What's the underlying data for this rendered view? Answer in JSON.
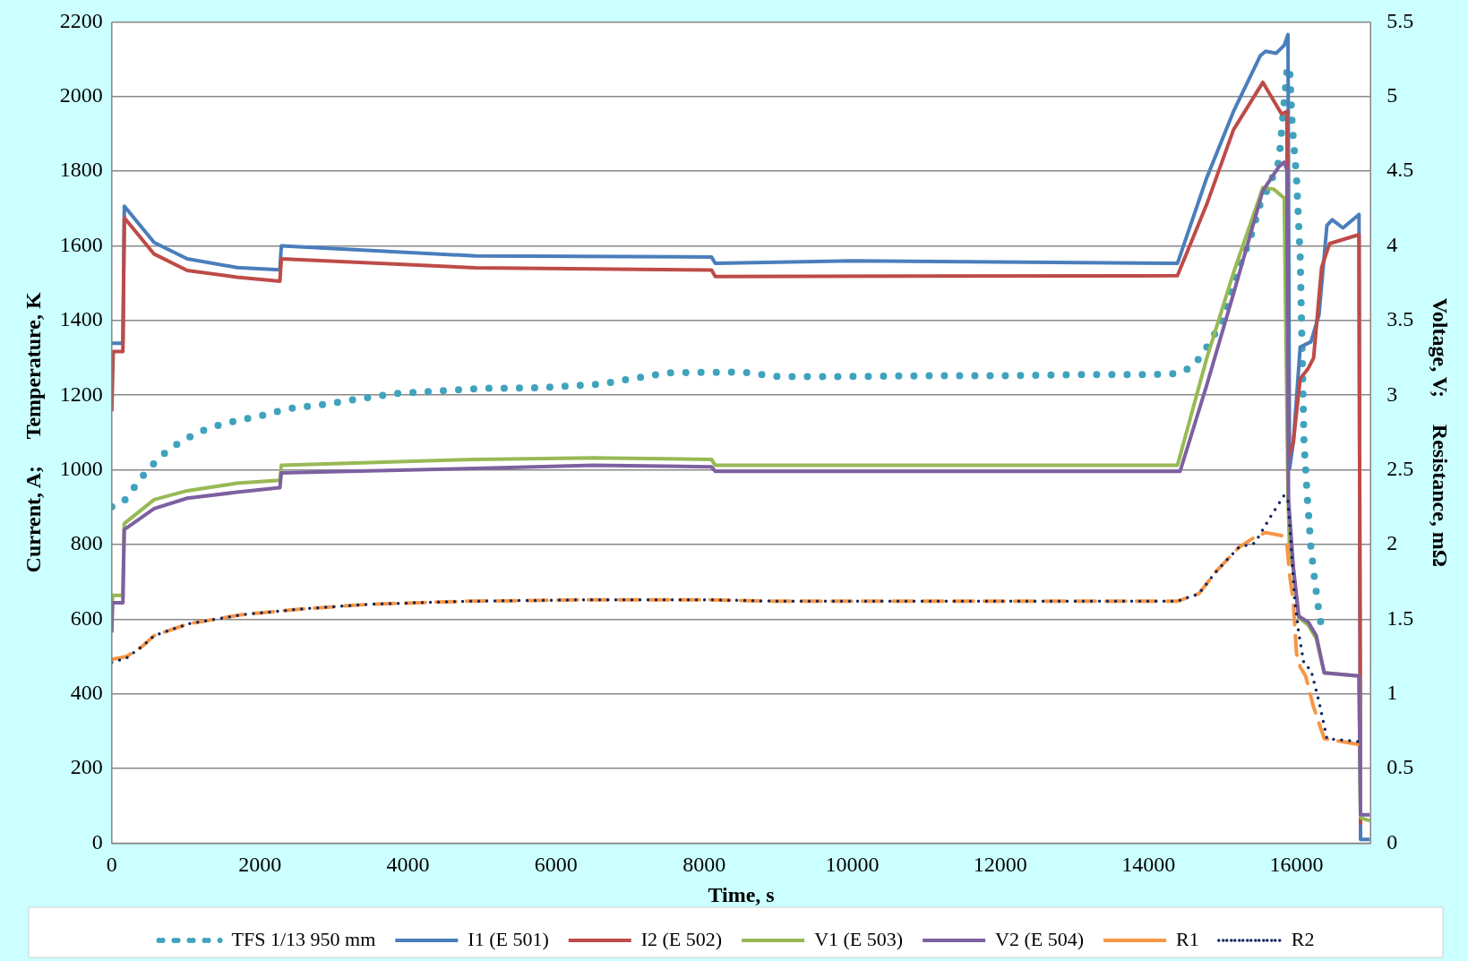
{
  "chart_data": {
    "type": "line",
    "xlabel": "Time, s",
    "ylabel": "Current, A;     Temperature, K",
    "y2label": "Voltage, V;     Resistance, mΩ",
    "xlim": [
      0,
      17000
    ],
    "xticks": [
      0,
      2000,
      4000,
      6000,
      8000,
      10000,
      12000,
      14000,
      16000
    ],
    "ylim": [
      0,
      2200
    ],
    "yticks": [
      0,
      200,
      400,
      600,
      800,
      1000,
      1200,
      1400,
      1600,
      1800,
      2000,
      2200
    ],
    "y2lim": [
      0,
      5.5
    ],
    "y2ticks": [
      0,
      0.5,
      1,
      1.5,
      2,
      2.5,
      3,
      3.5,
      4,
      4.5,
      5,
      5.5
    ],
    "grid": "y",
    "legend": "bottom",
    "marker": "none",
    "series": [
      {
        "name": "TFS 1/13 950 mm",
        "color": "#3fa3bd",
        "line_style": "dotted",
        "x": [
          0,
          168,
          293,
          418,
          555,
          699,
          868,
          1043,
          1262,
          1481,
          1763,
          2025,
          2394,
          2869,
          3339,
          3826,
          4376,
          4983,
          5808,
          6577,
          7500,
          8500,
          9000,
          10000,
          11000,
          12000,
          13000,
          14000,
          14392,
          14608,
          14789,
          15005,
          15221,
          15366,
          15510,
          15618,
          15762,
          15870,
          15906,
          15942,
          16000,
          16050,
          16072,
          16101,
          16144,
          16195,
          16245,
          16303,
          16346
        ],
        "values": [
          901,
          917,
          950,
          983,
          1014,
          1042,
          1067,
          1087,
          1108,
          1122,
          1135,
          1145,
          1164,
          1175,
          1190,
          1204,
          1211,
          1218,
          1220,
          1229,
          1260,
          1262,
          1250,
          1250,
          1252,
          1252,
          1255,
          1255,
          1258,
          1277,
          1329,
          1400,
          1542,
          1613,
          1712,
          1755,
          1826,
          2067,
          2081,
          1925,
          1783,
          1570,
          1357,
          1074,
          932,
          790,
          705,
          620,
          570
        ]
      },
      {
        "name": "I1 (E 501)",
        "color": "#4a7ebb",
        "line_style": "solid",
        "x": [
          0,
          150,
          170,
          572,
          1019,
          1691,
          2270,
          2290,
          4915,
          8100,
          8150,
          10000,
          14392,
          14789,
          15149,
          15510,
          15582,
          15726,
          15834,
          15885,
          15906,
          15957,
          16050,
          16195,
          16303,
          16411,
          16483,
          16627,
          16844,
          16865,
          16990
        ],
        "values": [
          1339,
          1339,
          1706,
          1609,
          1565,
          1542,
          1536,
          1600,
          1573,
          1570,
          1553,
          1560,
          1553,
          1783,
          1960,
          2109,
          2121,
          2116,
          2137,
          2166,
          1003,
          1074,
          1329,
          1343,
          1414,
          1655,
          1670,
          1648,
          1684,
          10,
          10
        ]
      },
      {
        "name": "I2 (E 502)",
        "color": "#be4b48",
        "line_style": "solid",
        "x": [
          0,
          20,
          150,
          170,
          572,
          1019,
          1691,
          2270,
          2290,
          4915,
          8100,
          8150,
          14392,
          14789,
          15149,
          15546,
          15798,
          15870,
          15892,
          15957,
          16050,
          16159,
          16231,
          16339,
          16447,
          16844,
          16865
        ],
        "values": [
          1157,
          1317,
          1317,
          1675,
          1578,
          1534,
          1516,
          1505,
          1565,
          1541,
          1535,
          1518,
          1520,
          1712,
          1911,
          2038,
          1953,
          1960,
          1031,
          1074,
          1244,
          1272,
          1300,
          1542,
          1606,
          1630,
          50
        ]
      },
      {
        "name": "V1 (E 503)",
        "color": "#98b954",
        "axis": "y2",
        "line_style": "solid",
        "x": [
          0,
          10,
          150,
          168,
          572,
          1019,
          1691,
          2270,
          2290,
          4915,
          6500,
          8100,
          8150,
          14392,
          14789,
          15149,
          15546,
          15690,
          15834,
          15885,
          15906,
          15957,
          16030,
          16159,
          16267,
          16375,
          16844,
          16865,
          16990
        ],
        "values": [
          1.46,
          1.66,
          1.66,
          2.14,
          2.3,
          2.36,
          2.41,
          2.43,
          2.53,
          2.57,
          2.58,
          2.57,
          2.53,
          2.53,
          3.25,
          3.82,
          4.39,
          4.38,
          4.32,
          2.33,
          1.97,
          1.83,
          1.51,
          1.46,
          1.37,
          1.14,
          1.12,
          0.17,
          0.15
        ]
      },
      {
        "name": "V2 (E 504)",
        "color": "#7d60a0",
        "axis": "y2",
        "line_style": "solid",
        "x": [
          0,
          10,
          150,
          168,
          572,
          1019,
          1691,
          2270,
          2290,
          4915,
          6500,
          8100,
          8150,
          14428,
          14789,
          15149,
          15546,
          15762,
          15834,
          15870,
          15892,
          15957,
          16030,
          16159,
          16267,
          16375,
          16844,
          16865,
          16990
        ],
        "values": [
          1.41,
          1.61,
          1.61,
          2.1,
          2.24,
          2.31,
          2.35,
          2.38,
          2.48,
          2.51,
          2.53,
          2.52,
          2.49,
          2.49,
          3.07,
          3.68,
          4.37,
          4.53,
          4.56,
          4.51,
          2.3,
          1.85,
          1.52,
          1.48,
          1.39,
          1.14,
          1.12,
          0.19,
          0.19
        ]
      },
      {
        "name": "R1",
        "color": "#f79646",
        "axis": "y2",
        "line_style": "dashed",
        "x": [
          0,
          200,
          418,
          572,
          1043,
          1763,
          2607,
          3500,
          4790,
          6500,
          8000,
          9000,
          14392,
          14680,
          14933,
          15221,
          15437,
          15582,
          15798,
          15870,
          15906,
          15957,
          16000,
          16050,
          16123,
          16231,
          16375,
          16844
        ],
        "values": [
          1.23,
          1.25,
          1.32,
          1.39,
          1.47,
          1.53,
          1.57,
          1.6,
          1.62,
          1.63,
          1.63,
          1.62,
          1.62,
          1.67,
          1.83,
          1.98,
          2.05,
          2.08,
          2.06,
          2.01,
          1.8,
          1.62,
          1.27,
          1.18,
          1.12,
          0.91,
          0.7,
          0.66
        ]
      },
      {
        "name": "R2",
        "color": "#10275e",
        "axis": "y2",
        "line_style": "dotted",
        "x": [
          0,
          200,
          418,
          572,
          1043,
          1763,
          2607,
          3500,
          4790,
          6500,
          8000,
          9000,
          14392,
          14680,
          14933,
          15221,
          15437,
          15654,
          15834,
          15885,
          15928,
          15978,
          16029,
          16101,
          16195,
          16303,
          16411,
          16844
        ],
        "values": [
          1.21,
          1.24,
          1.32,
          1.39,
          1.47,
          1.53,
          1.57,
          1.6,
          1.62,
          1.63,
          1.63,
          1.62,
          1.62,
          1.67,
          1.83,
          1.98,
          2.01,
          2.19,
          2.33,
          2.29,
          1.98,
          1.62,
          1.41,
          1.2,
          1.16,
          0.95,
          0.7,
          0.68
        ]
      }
    ]
  }
}
